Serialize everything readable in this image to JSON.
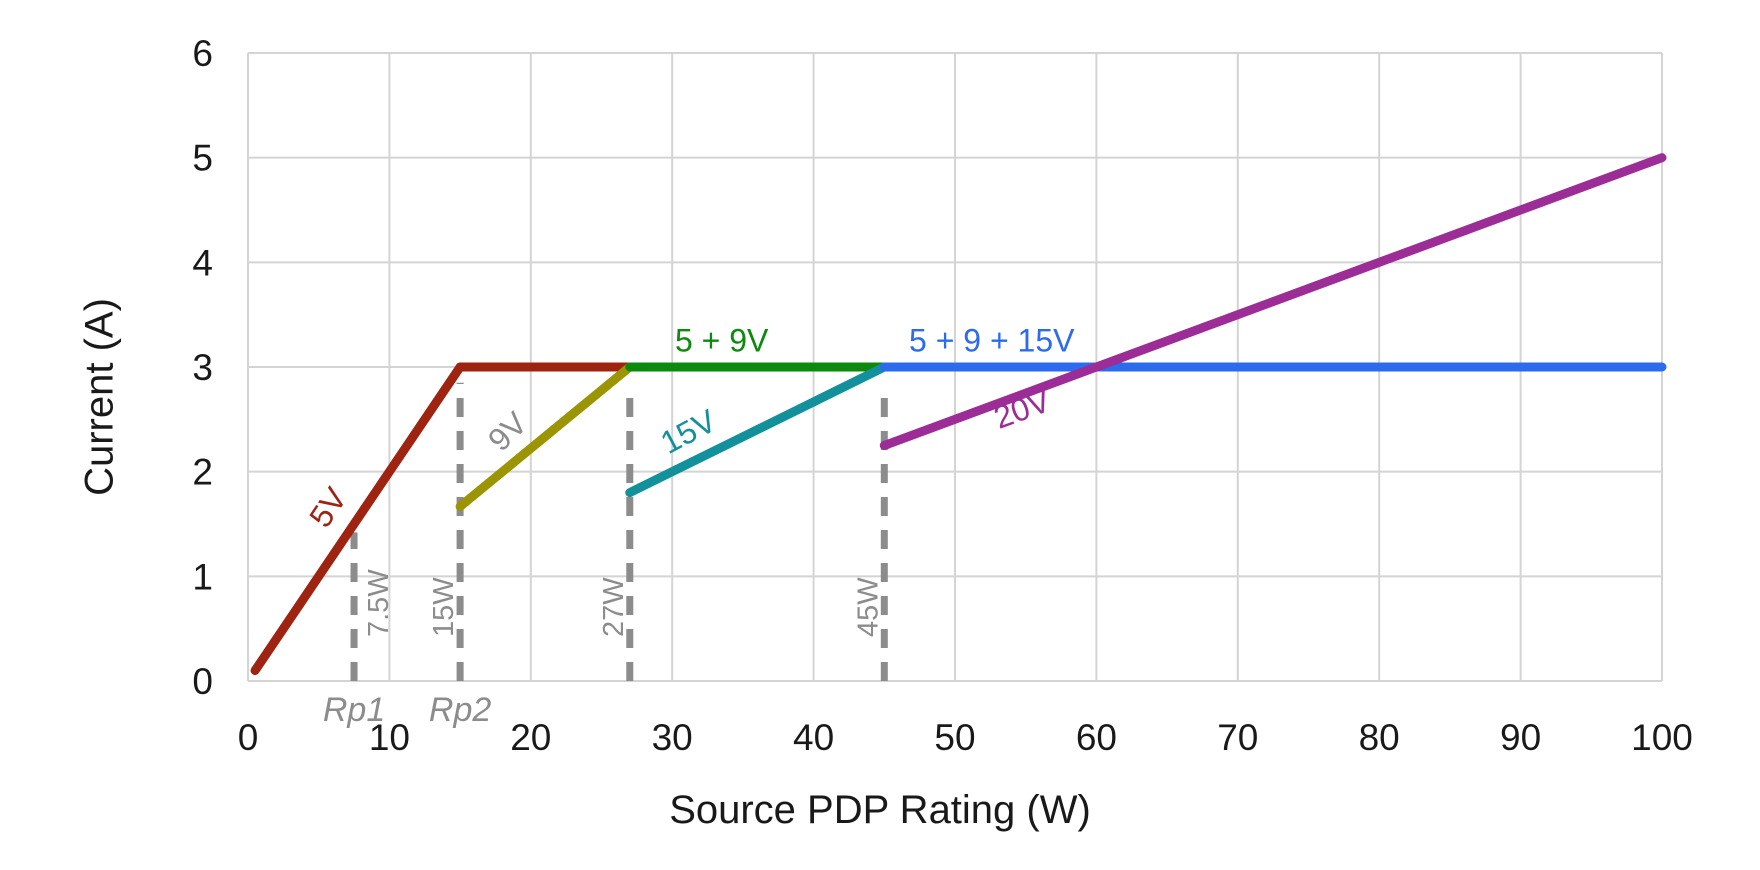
{
  "chart_data": {
    "type": "line",
    "title": "",
    "xlabel": "Source PDP Rating (W)",
    "ylabel": "Current (A)",
    "xlim": [
      0,
      100
    ],
    "ylim": [
      0,
      6
    ],
    "xticks": [
      0,
      10,
      20,
      30,
      40,
      50,
      60,
      70,
      80,
      90,
      100
    ],
    "yticks": [
      0,
      1,
      2,
      3,
      4,
      5,
      6
    ],
    "grid": true,
    "grid_color": "#d4d4d4",
    "legend_position": "none",
    "series": [
      {
        "name": "5V",
        "color": "#9e2310",
        "points": [
          [
            0.5,
            0.1
          ],
          [
            15,
            3
          ],
          [
            27,
            3
          ]
        ]
      },
      {
        "name": "9V",
        "color": "#9c9503",
        "points": [
          [
            15,
            1.667
          ],
          [
            27,
            3
          ]
        ]
      },
      {
        "name": "5 + 9V",
        "color": "#0d8a0d",
        "points": [
          [
            27,
            3
          ],
          [
            45,
            3
          ]
        ]
      },
      {
        "name": "15V",
        "color": "#12909b",
        "points": [
          [
            27,
            1.8
          ],
          [
            45,
            3
          ]
        ]
      },
      {
        "name": "5 + 9 + 15V",
        "color": "#2d6bee",
        "points": [
          [
            45,
            3
          ],
          [
            100,
            3
          ]
        ]
      },
      {
        "name": "20V",
        "color": "#9c2c96",
        "points": [
          [
            45,
            2.25
          ],
          [
            100,
            5
          ]
        ]
      }
    ],
    "series_labels": [
      {
        "text": "5V",
        "color": "#9e2310",
        "x": 6.3,
        "y": 1.6,
        "rotate": -56
      },
      {
        "text": "9V",
        "color": "#8c8c8c",
        "x": 18.9,
        "y": 2.31,
        "rotate": -45
      },
      {
        "text": "15V",
        "color": "#12909b",
        "x": 31.5,
        "y": 2.29,
        "rotate": -28
      },
      {
        "text": "20V",
        "color": "#9c2c96",
        "x": 55.0,
        "y": 2.5,
        "rotate": -20
      },
      {
        "text": "5 + 9V",
        "color": "#0d8a0d",
        "x": 33.5,
        "y": 3.15,
        "rotate": 0
      },
      {
        "text": "5 + 9 + 15V",
        "color": "#2d6bee",
        "x": 52.6,
        "y": 3.15,
        "rotate": 0
      }
    ],
    "reference_lines": [
      {
        "label": "7.5W",
        "x": 7.5,
        "y_top": 1.42,
        "color": "#8c8c8c",
        "label_side": "right"
      },
      {
        "label": "15W",
        "x": 15,
        "y_top": 2.85,
        "color": "#8c8c8c",
        "label_side": "left"
      },
      {
        "label": "27W",
        "x": 27,
        "y_top": 2.83,
        "color": "#8c8c8c",
        "label_side": "left"
      },
      {
        "label": "45W",
        "x": 45,
        "y_top": 2.8,
        "color": "#8c8c8c",
        "label_side": "left"
      }
    ],
    "x_axis_annotations": [
      {
        "label": "Rp1",
        "x": 7.5,
        "color": "#8c8c8c"
      },
      {
        "label": "Rp2",
        "x": 15,
        "color": "#8c8c8c"
      }
    ],
    "text_color": "#191919"
  }
}
